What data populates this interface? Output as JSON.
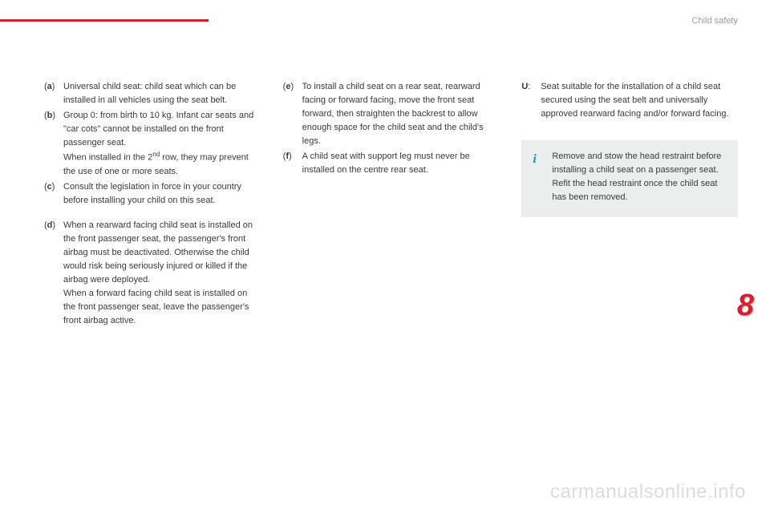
{
  "header": {
    "section": "Child safety",
    "line_color": "#d91e2e"
  },
  "columns": [
    {
      "items": [
        {
          "label_open": "(",
          "label_letter": "a",
          "label_close": ")",
          "text": "Universal child seat: child seat which can be installed in all vehicles using the seat belt.",
          "gap": false
        },
        {
          "label_open": "(",
          "label_letter": "b",
          "label_close": ")",
          "text": "Group 0: from birth to 10 kg. Infant car seats and \"car cots\" cannot be installed on the front passenger seat.<br>When installed in the 2<span class=\"sup\">nd</span> row, they may prevent the use of one or more seats.",
          "gap": false
        },
        {
          "label_open": "(",
          "label_letter": "c",
          "label_close": ")",
          "text": "Consult the legislation in force in your country before installing your child on this seat.",
          "gap": false
        },
        {
          "label_open": "(",
          "label_letter": "d",
          "label_close": ")",
          "text": "When a rearward facing child seat is installed on the front passenger seat, the passenger's front airbag must be deactivated. Otherwise the child would risk being seriously injured or killed if the airbag were deployed.<br>When a forward facing child seat is installed on the front passenger seat, leave the passenger's front airbag active.",
          "gap": true
        }
      ],
      "has_info_box": false
    },
    {
      "items": [
        {
          "label_open": "(",
          "label_letter": "e",
          "label_close": ")",
          "text": "To install a child seat on a rear seat, rearward facing or forward facing, move the front seat forward, then straighten the backrest to allow enough space for the child seat and the child's legs.",
          "gap": false
        },
        {
          "label_open": "(",
          "label_letter": "f",
          "label_close": ")",
          "text": "A child seat with support leg must never be installed on the centre rear seat.",
          "gap": false
        }
      ],
      "has_info_box": false
    },
    {
      "items": [
        {
          "label_open": "",
          "label_letter": "U",
          "label_close": ":",
          "text": "Seat suitable for the installation of a child seat secured using the seat belt and universally approved rearward facing and/or forward facing.",
          "gap": false
        }
      ],
      "has_info_box": true,
      "info_box": {
        "icon": "i",
        "text": "Remove and stow the head restraint before installing a child seat on a passenger seat. Refit the head restraint once the child seat has been removed."
      }
    }
  ],
  "chapter": "8",
  "watermark": "carmanualsonline.info",
  "colors": {
    "accent": "#d91e2e",
    "info_icon": "#1a8cc9",
    "info_bg": "#eceded",
    "body_text": "#3a3a3a",
    "header_text": "#AA9798",
    "watermark": "#dcdcdc"
  }
}
